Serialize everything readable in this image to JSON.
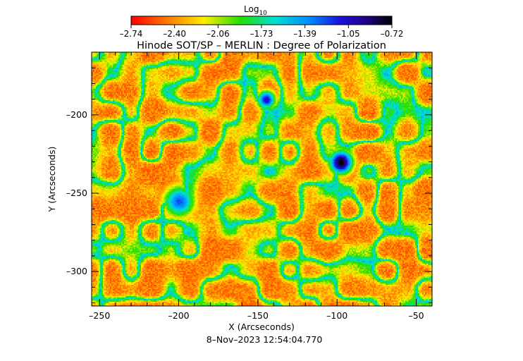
{
  "chart_data": {
    "type": "heatmap",
    "title": "Hinode SOT/SP – MERLIN : Degree of Polarization",
    "xlabel": "X (Arcseconds)",
    "ylabel": "Y (Arcseconds)",
    "footer": "8–Nov–2023 12:54:04.770",
    "colorbar": {
      "label_main": "Log",
      "label_sub": "10",
      "ticks": [
        "–2.74",
        "–2.40",
        "–2.06",
        "–1.73",
        "–1.39",
        "–1.05",
        "–0.72"
      ],
      "range": [
        -2.74,
        -0.72
      ],
      "colormap": "rainbow"
    },
    "xlim": [
      -255,
      -40
    ],
    "ylim": [
      -322,
      -160
    ],
    "xticks": [
      {
        "value": -250,
        "label": "–250"
      },
      {
        "value": -200,
        "label": "–200"
      },
      {
        "value": -150,
        "label": "–150"
      },
      {
        "value": -100,
        "label": "–100"
      },
      {
        "value": -50,
        "label": "–50"
      }
    ],
    "yticks": [
      {
        "value": -200,
        "label": "–200"
      },
      {
        "value": -250,
        "label": "–250"
      },
      {
        "value": -300,
        "label": "–300"
      }
    ],
    "features": [
      {
        "name": "strong-polarization-core",
        "x": -98,
        "y": -230,
        "level": -0.75
      },
      {
        "name": "strong-polarization-patch",
        "x": -145,
        "y": -190,
        "level": -1.1
      },
      {
        "name": "network-lane",
        "x": -200,
        "y": -255,
        "level": -1.3
      }
    ]
  }
}
